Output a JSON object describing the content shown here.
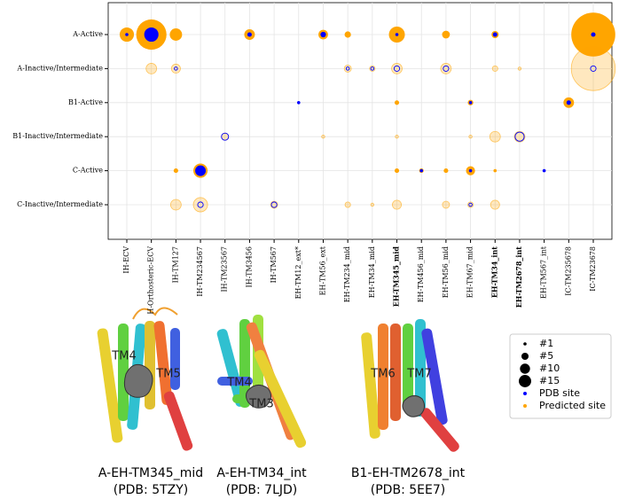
{
  "chart_data": {
    "type": "bubble",
    "x_categories": [
      "IH-ECV",
      "H-Orthosteric-ECV",
      "IH-TM127",
      "IH-TM234567",
      "IH-TM23567",
      "IH-TM3456",
      "IH-TM567",
      "EH-TM12_ext*",
      "EH-TM56_ext",
      "EH-TM234_mid",
      "EH-TM34_mid",
      "EH-TM345_mid",
      "EH-TM456_mid",
      "EH-TM56_mid",
      "EH-TM67_mid",
      "EH-TM34_int",
      "EH-TM2678_int",
      "EH-TM567_int",
      "IC-TM235678",
      "IC-TM23678"
    ],
    "y_categories": [
      "A-Active",
      "A-Inactive/Intermediate",
      "B1-Active",
      "B1-Inactive/Intermediate",
      "C-Active",
      "C-Inactive/Intermediate"
    ],
    "row_style": [
      "filled",
      "hollow",
      "filled",
      "hollow",
      "filled",
      "hollow"
    ],
    "highlighted_categories": [
      "EH-TM345_mid",
      "EH-TM34_int",
      "EH-TM2678_int"
    ],
    "grid": true,
    "size_legend": [
      {
        "value": 1,
        "label": "#1"
      },
      {
        "value": 5,
        "label": "#5"
      },
      {
        "value": 10,
        "label": "#10"
      },
      {
        "value": 15,
        "label": "#15"
      }
    ],
    "series": [
      {
        "name": "Predicted site",
        "color": "#ffa500",
        "points": [
          {
            "x": "IH-ECV",
            "y": "A-Active",
            "size": 20
          },
          {
            "x": "H-Orthosteric-ECV",
            "y": "A-Active",
            "size": 90
          },
          {
            "x": "IH-TM127",
            "y": "A-Active",
            "size": 15
          },
          {
            "x": "IH-TM3456",
            "y": "A-Active",
            "size": 11
          },
          {
            "x": "EH-TM56_ext",
            "y": "A-Active",
            "size": 9
          },
          {
            "x": "EH-TM234_mid",
            "y": "A-Active",
            "size": 4
          },
          {
            "x": "EH-TM345_mid",
            "y": "A-Active",
            "size": 25
          },
          {
            "x": "EH-TM56_mid",
            "y": "A-Active",
            "size": 6
          },
          {
            "x": "EH-TM34_int",
            "y": "A-Active",
            "size": 5
          },
          {
            "x": "IC-TM23678",
            "y": "A-Active",
            "size": 190
          },
          {
            "x": "H-Orthosteric-ECV",
            "y": "A-Inactive/Intermediate",
            "size": 11
          },
          {
            "x": "IH-TM127",
            "y": "A-Inactive/Intermediate",
            "size": 8
          },
          {
            "x": "EH-TM234_mid",
            "y": "A-Inactive/Intermediate",
            "size": 5
          },
          {
            "x": "EH-TM34_mid",
            "y": "A-Inactive/Intermediate",
            "size": 3
          },
          {
            "x": "EH-TM345_mid",
            "y": "A-Inactive/Intermediate",
            "size": 11
          },
          {
            "x": "EH-TM56_mid",
            "y": "A-Inactive/Intermediate",
            "size": 11
          },
          {
            "x": "EH-TM34_int",
            "y": "A-Inactive/Intermediate",
            "size": 3
          },
          {
            "x": "EH-TM2678_int",
            "y": "A-Inactive/Intermediate",
            "size": 1
          },
          {
            "x": "IC-TM23678",
            "y": "A-Inactive/Intermediate",
            "size": 190
          },
          {
            "x": "EH-TM345_mid",
            "y": "B1-Active",
            "size": 2
          },
          {
            "x": "EH-TM67_mid",
            "y": "B1-Active",
            "size": 3
          },
          {
            "x": "IC-TM235678",
            "y": "B1-Active",
            "size": 11
          },
          {
            "x": "IH-TM23567",
            "y": "B1-Inactive/Intermediate",
            "size": 5
          },
          {
            "x": "EH-TM56_ext",
            "y": "B1-Inactive/Intermediate",
            "size": 1
          },
          {
            "x": "EH-TM345_mid",
            "y": "B1-Inactive/Intermediate",
            "size": 1
          },
          {
            "x": "EH-TM67_mid",
            "y": "B1-Inactive/Intermediate",
            "size": 1
          },
          {
            "x": "EH-TM34_int",
            "y": "B1-Inactive/Intermediate",
            "size": 11
          },
          {
            "x": "EH-TM2678_int",
            "y": "B1-Inactive/Intermediate",
            "size": 11
          },
          {
            "x": "IH-TM127",
            "y": "C-Active",
            "size": 2
          },
          {
            "x": "IH-TM234567",
            "y": "C-Active",
            "size": 20
          },
          {
            "x": "EH-TM345_mid",
            "y": "C-Active",
            "size": 2
          },
          {
            "x": "EH-TM456_mid",
            "y": "C-Active",
            "size": 2
          },
          {
            "x": "EH-TM56_mid",
            "y": "C-Active",
            "size": 2
          },
          {
            "x": "EH-TM67_mid",
            "y": "C-Active",
            "size": 8
          },
          {
            "x": "EH-TM34_int",
            "y": "C-Active",
            "size": 1
          },
          {
            "x": "IH-TM127",
            "y": "C-Inactive/Intermediate",
            "size": 11
          },
          {
            "x": "IH-TM234567",
            "y": "C-Inactive/Intermediate",
            "size": 20
          },
          {
            "x": "IH-TM567",
            "y": "C-Inactive/Intermediate",
            "size": 5
          },
          {
            "x": "EH-TM234_mid",
            "y": "C-Inactive/Intermediate",
            "size": 3
          },
          {
            "x": "EH-TM34_mid",
            "y": "C-Inactive/Intermediate",
            "size": 1
          },
          {
            "x": "EH-TM345_mid",
            "y": "C-Inactive/Intermediate",
            "size": 8
          },
          {
            "x": "EH-TM56_mid",
            "y": "C-Inactive/Intermediate",
            "size": 5
          },
          {
            "x": "EH-TM67_mid",
            "y": "C-Inactive/Intermediate",
            "size": 3
          },
          {
            "x": "EH-TM34_int",
            "y": "C-Inactive/Intermediate",
            "size": 8
          }
        ]
      },
      {
        "name": "PDB site",
        "color": "#0000ff",
        "points": [
          {
            "x": "IH-ECV",
            "y": "A-Active",
            "size": 1
          },
          {
            "x": "H-Orthosteric-ECV",
            "y": "A-Active",
            "size": 20
          },
          {
            "x": "IH-TM3456",
            "y": "A-Active",
            "size": 2
          },
          {
            "x": "EH-TM56_ext",
            "y": "A-Active",
            "size": 3
          },
          {
            "x": "EH-TM345_mid",
            "y": "A-Active",
            "size": 1
          },
          {
            "x": "EH-TM34_int",
            "y": "A-Active",
            "size": 2
          },
          {
            "x": "IC-TM23678",
            "y": "A-Active",
            "size": 2
          },
          {
            "x": "IH-TM127",
            "y": "A-Inactive/Intermediate",
            "size": 1
          },
          {
            "x": "EH-TM234_mid",
            "y": "A-Inactive/Intermediate",
            "size": 1
          },
          {
            "x": "EH-TM34_mid",
            "y": "A-Inactive/Intermediate",
            "size": 1
          },
          {
            "x": "EH-TM345_mid",
            "y": "A-Inactive/Intermediate",
            "size": 3
          },
          {
            "x": "EH-TM56_mid",
            "y": "A-Inactive/Intermediate",
            "size": 3
          },
          {
            "x": "IC-TM23678",
            "y": "A-Inactive/Intermediate",
            "size": 3
          },
          {
            "x": "EH-TM12_ext*",
            "y": "B1-Active",
            "size": 1
          },
          {
            "x": "EH-TM67_mid",
            "y": "B1-Active",
            "size": 1
          },
          {
            "x": "IC-TM235678",
            "y": "B1-Active",
            "size": 2
          },
          {
            "x": "IH-TM23567",
            "y": "B1-Inactive/Intermediate",
            "size": 5
          },
          {
            "x": "EH-TM2678_int",
            "y": "B1-Inactive/Intermediate",
            "size": 8
          },
          {
            "x": "IH-TM234567",
            "y": "C-Active",
            "size": 11
          },
          {
            "x": "EH-TM456_mid",
            "y": "C-Active",
            "size": 1
          },
          {
            "x": "EH-TM67_mid",
            "y": "C-Active",
            "size": 1
          },
          {
            "x": "EH-TM567_int",
            "y": "C-Active",
            "size": 1
          },
          {
            "x": "IH-TM234567",
            "y": "C-Inactive/Intermediate",
            "size": 3
          },
          {
            "x": "IH-TM567",
            "y": "C-Inactive/Intermediate",
            "size": 3
          },
          {
            "x": "EH-TM67_mid",
            "y": "C-Inactive/Intermediate",
            "size": 1
          }
        ]
      }
    ]
  },
  "structures": [
    {
      "labels": [
        "TM4",
        "TM5"
      ],
      "caption": "A-EH-TM345_mid",
      "pdb": "(PDB: 5TZY)"
    },
    {
      "labels": [
        "TM4",
        "TM3"
      ],
      "caption": "A-EH-TM34_int",
      "pdb": "(PDB: 7LJD)"
    },
    {
      "labels": [
        "TM6",
        "TM7"
      ],
      "caption": "B1-EH-TM2678_int",
      "pdb": "(PDB: 5EE7)"
    }
  ]
}
